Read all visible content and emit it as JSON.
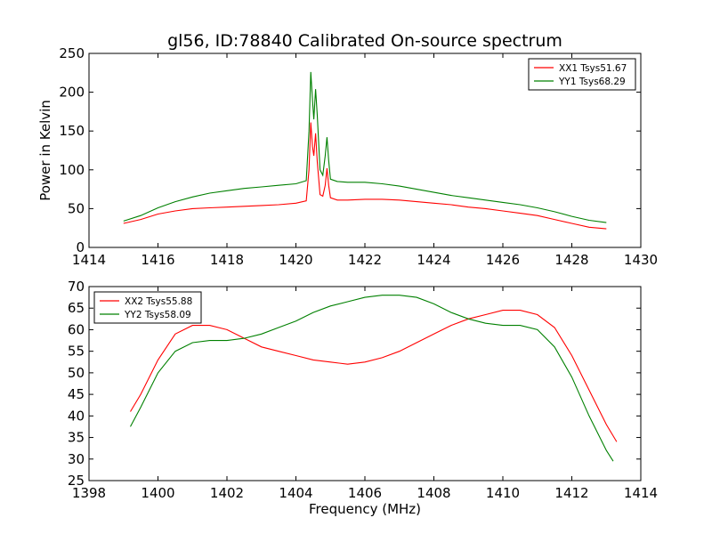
{
  "chart_data": [
    {
      "type": "line",
      "title": "gl56, ID:78840 Calibrated On-source spectrum",
      "xlabel": "",
      "ylabel": "Power in Kelvin",
      "xlim": [
        1414,
        1430
      ],
      "ylim": [
        0,
        250
      ],
      "xticks": [
        1414,
        1416,
        1418,
        1420,
        1422,
        1424,
        1426,
        1428,
        1430
      ],
      "yticks": [
        0,
        50,
        100,
        150,
        200,
        250
      ],
      "legend": "top-right",
      "grid": false,
      "series": [
        {
          "name": "XX1 Tsys51.67",
          "color": "#ff0000",
          "points": [
            [
              1415.0,
              31
            ],
            [
              1415.5,
              36
            ],
            [
              1416.0,
              43
            ],
            [
              1416.5,
              47
            ],
            [
              1417.0,
              50
            ],
            [
              1417.5,
              51
            ],
            [
              1418.0,
              52
            ],
            [
              1418.5,
              53
            ],
            [
              1419.0,
              54
            ],
            [
              1419.5,
              55
            ],
            [
              1420.0,
              57
            ],
            [
              1420.3,
              60
            ],
            [
              1420.38,
              100
            ],
            [
              1420.43,
              161
            ],
            [
              1420.48,
              130
            ],
            [
              1420.52,
              118
            ],
            [
              1420.57,
              147
            ],
            [
              1420.62,
              110
            ],
            [
              1420.7,
              68
            ],
            [
              1420.78,
              66
            ],
            [
              1420.85,
              80
            ],
            [
              1420.9,
              102
            ],
            [
              1420.95,
              80
            ],
            [
              1421.0,
              64
            ],
            [
              1421.2,
              61
            ],
            [
              1421.5,
              61
            ],
            [
              1422.0,
              62
            ],
            [
              1422.5,
              62
            ],
            [
              1423.0,
              61
            ],
            [
              1423.5,
              59
            ],
            [
              1424.0,
              57
            ],
            [
              1424.5,
              55
            ],
            [
              1425.0,
              52
            ],
            [
              1425.5,
              50
            ],
            [
              1426.0,
              47
            ],
            [
              1426.5,
              44
            ],
            [
              1427.0,
              41
            ],
            [
              1427.5,
              36
            ],
            [
              1428.0,
              31
            ],
            [
              1428.5,
              26
            ],
            [
              1429.0,
              24
            ]
          ]
        },
        {
          "name": "YY1 Tsys68.29",
          "color": "#008000",
          "points": [
            [
              1415.0,
              34
            ],
            [
              1415.5,
              41
            ],
            [
              1416.0,
              51
            ],
            [
              1416.5,
              59
            ],
            [
              1417.0,
              65
            ],
            [
              1417.5,
              70
            ],
            [
              1418.0,
              73
            ],
            [
              1418.5,
              76
            ],
            [
              1419.0,
              78
            ],
            [
              1419.5,
              80
            ],
            [
              1420.0,
              82
            ],
            [
              1420.3,
              86
            ],
            [
              1420.38,
              150
            ],
            [
              1420.43,
              226
            ],
            [
              1420.48,
              190
            ],
            [
              1420.52,
              165
            ],
            [
              1420.57,
              204
            ],
            [
              1420.62,
              170
            ],
            [
              1420.7,
              100
            ],
            [
              1420.78,
              93
            ],
            [
              1420.85,
              118
            ],
            [
              1420.9,
              142
            ],
            [
              1420.95,
              112
            ],
            [
              1421.0,
              88
            ],
            [
              1421.2,
              85
            ],
            [
              1421.5,
              84
            ],
            [
              1422.0,
              84
            ],
            [
              1422.5,
              82
            ],
            [
              1423.0,
              79
            ],
            [
              1423.5,
              75
            ],
            [
              1424.0,
              71
            ],
            [
              1424.5,
              67
            ],
            [
              1425.0,
              64
            ],
            [
              1425.5,
              61
            ],
            [
              1426.0,
              58
            ],
            [
              1426.5,
              55
            ],
            [
              1427.0,
              51
            ],
            [
              1427.5,
              46
            ],
            [
              1428.0,
              40
            ],
            [
              1428.5,
              35
            ],
            [
              1429.0,
              32
            ]
          ]
        }
      ]
    },
    {
      "type": "line",
      "title": "",
      "xlabel": "Frequency (MHz)",
      "ylabel": "",
      "xlim": [
        1398,
        1414
      ],
      "ylim": [
        25,
        70
      ],
      "xticks": [
        1398,
        1400,
        1402,
        1404,
        1406,
        1408,
        1410,
        1412,
        1414
      ],
      "yticks": [
        25,
        30,
        35,
        40,
        45,
        50,
        55,
        60,
        65,
        70
      ],
      "legend": "top-left",
      "grid": false,
      "series": [
        {
          "name": "XX2 Tsys55.88",
          "color": "#ff0000",
          "points": [
            [
              1399.2,
              41
            ],
            [
              1399.5,
              45
            ],
            [
              1400.0,
              53
            ],
            [
              1400.5,
              59
            ],
            [
              1401.0,
              61
            ],
            [
              1401.5,
              61
            ],
            [
              1402.0,
              60
            ],
            [
              1402.5,
              58
            ],
            [
              1403.0,
              56
            ],
            [
              1403.5,
              55
            ],
            [
              1404.0,
              54
            ],
            [
              1404.5,
              53
            ],
            [
              1405.0,
              52.5
            ],
            [
              1405.5,
              52
            ],
            [
              1406.0,
              52.5
            ],
            [
              1406.5,
              53.5
            ],
            [
              1407.0,
              55
            ],
            [
              1407.5,
              57
            ],
            [
              1408.0,
              59
            ],
            [
              1408.5,
              61
            ],
            [
              1409.0,
              62.5
            ],
            [
              1409.5,
              63.5
            ],
            [
              1410.0,
              64.5
            ],
            [
              1410.5,
              64.5
            ],
            [
              1411.0,
              63.5
            ],
            [
              1411.5,
              60.5
            ],
            [
              1412.0,
              54
            ],
            [
              1412.5,
              46
            ],
            [
              1413.0,
              38
            ],
            [
              1413.3,
              34
            ]
          ]
        },
        {
          "name": "YY2 Tsys58.09",
          "color": "#008000",
          "points": [
            [
              1399.2,
              37.5
            ],
            [
              1399.5,
              42
            ],
            [
              1400.0,
              50
            ],
            [
              1400.5,
              55
            ],
            [
              1401.0,
              57
            ],
            [
              1401.5,
              57.5
            ],
            [
              1402.0,
              57.5
            ],
            [
              1402.5,
              58
            ],
            [
              1403.0,
              59
            ],
            [
              1403.5,
              60.5
            ],
            [
              1404.0,
              62
            ],
            [
              1404.5,
              64
            ],
            [
              1405.0,
              65.5
            ],
            [
              1405.5,
              66.5
            ],
            [
              1406.0,
              67.5
            ],
            [
              1406.5,
              68
            ],
            [
              1407.0,
              68
            ],
            [
              1407.5,
              67.5
            ],
            [
              1408.0,
              66
            ],
            [
              1408.5,
              64
            ],
            [
              1409.0,
              62.5
            ],
            [
              1409.5,
              61.5
            ],
            [
              1410.0,
              61
            ],
            [
              1410.5,
              61
            ],
            [
              1411.0,
              60
            ],
            [
              1411.5,
              56
            ],
            [
              1412.0,
              49
            ],
            [
              1412.5,
              40
            ],
            [
              1413.0,
              32
            ],
            [
              1413.2,
              29.5
            ]
          ]
        }
      ]
    }
  ]
}
